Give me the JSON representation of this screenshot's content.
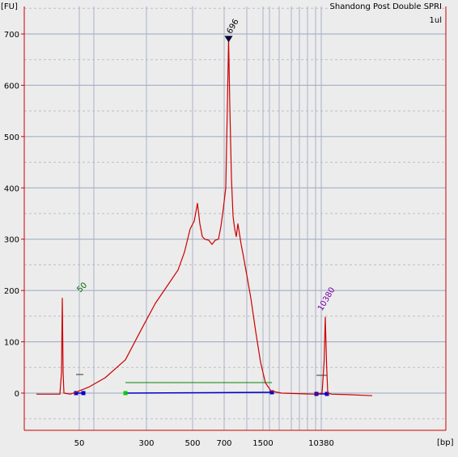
{
  "chart_data": {
    "type": "line",
    "title": "Shandong Post Double SPRI",
    "subtitle": "1ul",
    "y_unit": "[FU]",
    "x_unit": "[bp]",
    "ylim": [
      -70,
      750
    ],
    "y_ticks": [
      0,
      100,
      200,
      300,
      400,
      500,
      600,
      700
    ],
    "x_tick_labels": [
      "50",
      "300",
      "500",
      "700",
      "1500",
      "10380"
    ],
    "grid": true,
    "series": [
      {
        "color": "#cc0000",
        "points": [
          [
            15,
            -2
          ],
          [
            44,
            -2
          ],
          [
            46,
            40
          ],
          [
            47,
            185
          ],
          [
            48,
            40
          ],
          [
            49,
            0
          ],
          [
            57,
            -2
          ],
          [
            66,
            3
          ],
          [
            80,
            12
          ],
          [
            100,
            30
          ],
          [
            125,
            65
          ],
          [
            145,
            125
          ],
          [
            162,
            175
          ],
          [
            178,
            212
          ],
          [
            190,
            240
          ],
          [
            198,
            275
          ],
          [
            205,
            320
          ],
          [
            210,
            335
          ],
          [
            214,
            370
          ],
          [
            217,
            330
          ],
          [
            220,
            305
          ],
          [
            223,
            300
          ],
          [
            228,
            298
          ],
          [
            232,
            290
          ],
          [
            236,
            298
          ],
          [
            240,
            300
          ],
          [
            243,
            325
          ],
          [
            246,
            360
          ],
          [
            249,
            400
          ],
          [
            251,
            560
          ],
          [
            252.5,
            690
          ],
          [
            254,
            560
          ],
          [
            256,
            420
          ],
          [
            258,
            345
          ],
          [
            260,
            320
          ],
          [
            262,
            305
          ],
          [
            264,
            330
          ],
          [
            266,
            310
          ],
          [
            268,
            290
          ],
          [
            271,
            265
          ],
          [
            275,
            230
          ],
          [
            280,
            185
          ],
          [
            286,
            120
          ],
          [
            292,
            60
          ],
          [
            298,
            20
          ],
          [
            305,
            4
          ],
          [
            318,
            0
          ],
          [
            358,
            -2
          ],
          [
            368,
            0
          ],
          [
            370.5,
            60
          ],
          [
            372,
            148
          ],
          [
            373.5,
            60
          ],
          [
            375,
            0
          ],
          [
            380,
            -2
          ],
          [
            400,
            -3
          ],
          [
            430,
            -5
          ]
        ]
      }
    ],
    "peak_labels": [
      {
        "text": "50",
        "color": "#006600"
      },
      {
        "text": "696",
        "color": "#000000"
      },
      {
        "text": "10380",
        "color": "#7700aa"
      }
    ],
    "region_lines": [
      {
        "color": "#008800"
      },
      {
        "color": "#0000cc"
      }
    ]
  }
}
